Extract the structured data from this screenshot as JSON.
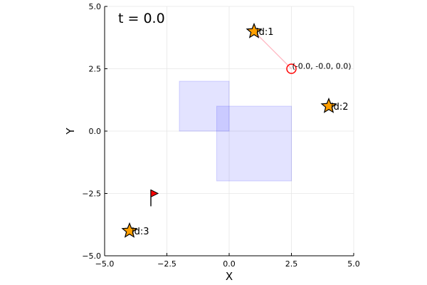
{
  "chart_data": {
    "type": "scatter",
    "time_label": "t = 0.0",
    "xlabel": "X",
    "ylabel": "Y",
    "xlim": [
      -5,
      5
    ],
    "ylim": [
      -5,
      5
    ],
    "grid": true,
    "x_ticks": [
      {
        "value": -5,
        "label": "−5.0"
      },
      {
        "value": -2.5,
        "label": "−2.5"
      },
      {
        "value": 0,
        "label": "0.0"
      },
      {
        "value": 2.5,
        "label": "2.5"
      },
      {
        "value": 5,
        "label": "5.0"
      }
    ],
    "y_ticks": [
      {
        "value": -5,
        "label": "−5.0"
      },
      {
        "value": -2.5,
        "label": "−2.5"
      },
      {
        "value": 0,
        "label": "0.0"
      },
      {
        "value": 2.5,
        "label": "2.5"
      },
      {
        "value": 5,
        "label": "5.0"
      }
    ],
    "obstacles": [
      {
        "x0": -2.0,
        "y0": 0.0,
        "x1": 0.0,
        "y1": 2.0
      },
      {
        "x0": -0.5,
        "y0": -2.0,
        "x1": 2.5,
        "y1": 1.0
      }
    ],
    "agents": [
      {
        "label": "id:1",
        "x": 1.0,
        "y": 4.0
      },
      {
        "label": "id:2",
        "x": 4.0,
        "y": 1.0
      },
      {
        "label": "id:3",
        "x": -4.0,
        "y": -4.0
      }
    ],
    "target": {
      "x": 2.5,
      "y": 2.5,
      "label": "(-0.0, -0.0, 0.0)"
    },
    "link": {
      "x0": 1.0,
      "y0": 4.0,
      "x1": 2.5,
      "y1": 2.5
    },
    "flag": {
      "x": -3.0,
      "y": -2.5
    },
    "colors": {
      "obstacle_fill": "#0000ff",
      "agent_fill": "#ff9f00",
      "target_stroke": "#ff0000",
      "link": "#ffb6c1",
      "flag": "#ff0000",
      "grid": "#e6e6e6"
    }
  }
}
